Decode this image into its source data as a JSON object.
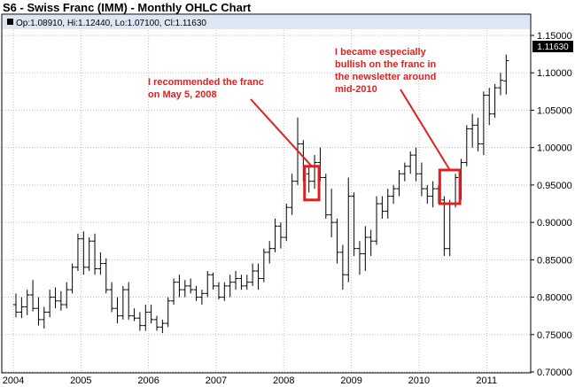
{
  "title": "S6 - Swiss Franc (IMM) - Monthly OHLC Chart",
  "ohlc_label": "Op:1.08910, Hi:1.12440, Lo:1.07100, Cl:1.11630",
  "last_price_label": "1.11630",
  "colors": {
    "header_band": "#dde6f5",
    "grid": "#bdbdbd",
    "bars": "#000000",
    "annotation": "#e02020",
    "price_tag_bg": "#000000",
    "price_tag_text": "#ffffff"
  },
  "chart_data": {
    "type": "ohlc",
    "title": "S6 - Swiss Franc (IMM) - Monthly OHLC Chart",
    "x_ticks": [
      "2004",
      "2005",
      "2006",
      "2007",
      "2008",
      "2009",
      "2010",
      "2011"
    ],
    "y_ticks": [
      "0.70000",
      "0.75000",
      "0.80000",
      "0.85000",
      "0.90000",
      "0.95000",
      "1.00000",
      "1.05000",
      "1.10000",
      "1.15000"
    ],
    "ylim": [
      0.7,
      1.15
    ],
    "xlim": [
      "2004-01",
      "2011-06"
    ],
    "grid": true,
    "bars": [
      {
        "d": "2004-01",
        "o": 0.79,
        "h": 0.805,
        "l": 0.773,
        "c": 0.78
      },
      {
        "d": "2004-02",
        "o": 0.78,
        "h": 0.8,
        "l": 0.772,
        "c": 0.787
      },
      {
        "d": "2004-03",
        "o": 0.787,
        "h": 0.81,
        "l": 0.776,
        "c": 0.803
      },
      {
        "d": "2004-04",
        "o": 0.803,
        "h": 0.823,
        "l": 0.781,
        "c": 0.785
      },
      {
        "d": "2004-05",
        "o": 0.785,
        "h": 0.8,
        "l": 0.762,
        "c": 0.77
      },
      {
        "d": "2004-06",
        "o": 0.77,
        "h": 0.787,
        "l": 0.758,
        "c": 0.78
      },
      {
        "d": "2004-07",
        "o": 0.78,
        "h": 0.81,
        "l": 0.773,
        "c": 0.8
      },
      {
        "d": "2004-08",
        "o": 0.8,
        "h": 0.813,
        "l": 0.785,
        "c": 0.795
      },
      {
        "d": "2004-09",
        "o": 0.795,
        "h": 0.808,
        "l": 0.782,
        "c": 0.79
      },
      {
        "d": "2004-10",
        "o": 0.79,
        "h": 0.82,
        "l": 0.785,
        "c": 0.81
      },
      {
        "d": "2004-11",
        "o": 0.81,
        "h": 0.845,
        "l": 0.805,
        "c": 0.84
      },
      {
        "d": "2004-12",
        "o": 0.84,
        "h": 0.885,
        "l": 0.835,
        "c": 0.878
      },
      {
        "d": "2005-01",
        "o": 0.878,
        "h": 0.888,
        "l": 0.83,
        "c": 0.84
      },
      {
        "d": "2005-02",
        "o": 0.84,
        "h": 0.88,
        "l": 0.835,
        "c": 0.875
      },
      {
        "d": "2005-03",
        "o": 0.875,
        "h": 0.885,
        "l": 0.83,
        "c": 0.838
      },
      {
        "d": "2005-04",
        "o": 0.838,
        "h": 0.86,
        "l": 0.83,
        "c": 0.845
      },
      {
        "d": "2005-05",
        "o": 0.845,
        "h": 0.852,
        "l": 0.805,
        "c": 0.81
      },
      {
        "d": "2005-06",
        "o": 0.81,
        "h": 0.82,
        "l": 0.78,
        "c": 0.785
      },
      {
        "d": "2005-07",
        "o": 0.785,
        "h": 0.8,
        "l": 0.765,
        "c": 0.775
      },
      {
        "d": "2005-08",
        "o": 0.775,
        "h": 0.815,
        "l": 0.77,
        "c": 0.81
      },
      {
        "d": "2005-09",
        "o": 0.81,
        "h": 0.82,
        "l": 0.77,
        "c": 0.775
      },
      {
        "d": "2005-10",
        "o": 0.775,
        "h": 0.785,
        "l": 0.768,
        "c": 0.772
      },
      {
        "d": "2005-11",
        "o": 0.772,
        "h": 0.78,
        "l": 0.755,
        "c": 0.762
      },
      {
        "d": "2005-12",
        "o": 0.762,
        "h": 0.79,
        "l": 0.755,
        "c": 0.78
      },
      {
        "d": "2006-01",
        "o": 0.78,
        "h": 0.79,
        "l": 0.765,
        "c": 0.77
      },
      {
        "d": "2006-02",
        "o": 0.77,
        "h": 0.775,
        "l": 0.755,
        "c": 0.76
      },
      {
        "d": "2006-03",
        "o": 0.76,
        "h": 0.77,
        "l": 0.752,
        "c": 0.765
      },
      {
        "d": "2006-04",
        "o": 0.765,
        "h": 0.8,
        "l": 0.76,
        "c": 0.795
      },
      {
        "d": "2006-05",
        "o": 0.795,
        "h": 0.825,
        "l": 0.79,
        "c": 0.82
      },
      {
        "d": "2006-06",
        "o": 0.82,
        "h": 0.83,
        "l": 0.8,
        "c": 0.81
      },
      {
        "d": "2006-07",
        "o": 0.81,
        "h": 0.823,
        "l": 0.8,
        "c": 0.815
      },
      {
        "d": "2006-08",
        "o": 0.815,
        "h": 0.825,
        "l": 0.805,
        "c": 0.81
      },
      {
        "d": "2006-09",
        "o": 0.81,
        "h": 0.815,
        "l": 0.795,
        "c": 0.8
      },
      {
        "d": "2006-10",
        "o": 0.8,
        "h": 0.81,
        "l": 0.79,
        "c": 0.805
      },
      {
        "d": "2006-11",
        "o": 0.805,
        "h": 0.835,
        "l": 0.8,
        "c": 0.83
      },
      {
        "d": "2006-12",
        "o": 0.83,
        "h": 0.833,
        "l": 0.81,
        "c": 0.815
      },
      {
        "d": "2007-01",
        "o": 0.815,
        "h": 0.82,
        "l": 0.797,
        "c": 0.8
      },
      {
        "d": "2007-02",
        "o": 0.8,
        "h": 0.82,
        "l": 0.795,
        "c": 0.815
      },
      {
        "d": "2007-03",
        "o": 0.815,
        "h": 0.83,
        "l": 0.8,
        "c": 0.82
      },
      {
        "d": "2007-04",
        "o": 0.82,
        "h": 0.835,
        "l": 0.81,
        "c": 0.825
      },
      {
        "d": "2007-05",
        "o": 0.825,
        "h": 0.83,
        "l": 0.81,
        "c": 0.815
      },
      {
        "d": "2007-06",
        "o": 0.815,
        "h": 0.83,
        "l": 0.81,
        "c": 0.82
      },
      {
        "d": "2007-07",
        "o": 0.82,
        "h": 0.845,
        "l": 0.815,
        "c": 0.835
      },
      {
        "d": "2007-08",
        "o": 0.835,
        "h": 0.845,
        "l": 0.81,
        "c": 0.825
      },
      {
        "d": "2007-09",
        "o": 0.825,
        "h": 0.865,
        "l": 0.82,
        "c": 0.86
      },
      {
        "d": "2007-10",
        "o": 0.86,
        "h": 0.875,
        "l": 0.845,
        "c": 0.865
      },
      {
        "d": "2007-11",
        "o": 0.865,
        "h": 0.905,
        "l": 0.86,
        "c": 0.895
      },
      {
        "d": "2007-12",
        "o": 0.895,
        "h": 0.9,
        "l": 0.865,
        "c": 0.88
      },
      {
        "d": "2008-01",
        "o": 0.88,
        "h": 0.925,
        "l": 0.875,
        "c": 0.92
      },
      {
        "d": "2008-02",
        "o": 0.92,
        "h": 0.965,
        "l": 0.91,
        "c": 0.955
      },
      {
        "d": "2008-03",
        "o": 0.955,
        "h": 1.04,
        "l": 0.95,
        "c": 1.005
      },
      {
        "d": "2008-04",
        "o": 1.005,
        "h": 1.01,
        "l": 0.955,
        "c": 0.965
      },
      {
        "d": "2008-05",
        "o": 0.965,
        "h": 0.975,
        "l": 0.94,
        "c": 0.955
      },
      {
        "d": "2008-06",
        "o": 0.955,
        "h": 0.99,
        "l": 0.945,
        "c": 0.98
      },
      {
        "d": "2008-07",
        "o": 0.98,
        "h": 1.0,
        "l": 0.955,
        "c": 0.96
      },
      {
        "d": "2008-08",
        "o": 0.96,
        "h": 0.965,
        "l": 0.905,
        "c": 0.91
      },
      {
        "d": "2008-09",
        "o": 0.91,
        "h": 0.945,
        "l": 0.88,
        "c": 0.9
      },
      {
        "d": "2008-10",
        "o": 0.9,
        "h": 0.905,
        "l": 0.845,
        "c": 0.86
      },
      {
        "d": "2008-11",
        "o": 0.86,
        "h": 0.87,
        "l": 0.81,
        "c": 0.83
      },
      {
        "d": "2008-12",
        "o": 0.83,
        "h": 0.96,
        "l": 0.82,
        "c": 0.935
      },
      {
        "d": "2009-01",
        "o": 0.935,
        "h": 0.94,
        "l": 0.855,
        "c": 0.865
      },
      {
        "d": "2009-02",
        "o": 0.865,
        "h": 0.875,
        "l": 0.83,
        "c": 0.858
      },
      {
        "d": "2009-03",
        "o": 0.858,
        "h": 0.895,
        "l": 0.835,
        "c": 0.88
      },
      {
        "d": "2009-04",
        "o": 0.88,
        "h": 0.89,
        "l": 0.855,
        "c": 0.875
      },
      {
        "d": "2009-05",
        "o": 0.875,
        "h": 0.935,
        "l": 0.87,
        "c": 0.925
      },
      {
        "d": "2009-06",
        "o": 0.925,
        "h": 0.935,
        "l": 0.905,
        "c": 0.915
      },
      {
        "d": "2009-07",
        "o": 0.915,
        "h": 0.945,
        "l": 0.905,
        "c": 0.935
      },
      {
        "d": "2009-08",
        "o": 0.935,
        "h": 0.95,
        "l": 0.925,
        "c": 0.945
      },
      {
        "d": "2009-09",
        "o": 0.945,
        "h": 0.97,
        "l": 0.935,
        "c": 0.965
      },
      {
        "d": "2009-10",
        "o": 0.965,
        "h": 0.98,
        "l": 0.955,
        "c": 0.975
      },
      {
        "d": "2009-11",
        "o": 0.975,
        "h": 0.995,
        "l": 0.965,
        "c": 0.99
      },
      {
        "d": "2009-12",
        "o": 0.99,
        "h": 1.0,
        "l": 0.955,
        "c": 0.965
      },
      {
        "d": "2010-01",
        "o": 0.965,
        "h": 0.98,
        "l": 0.935,
        "c": 0.945
      },
      {
        "d": "2010-02",
        "o": 0.945,
        "h": 0.95,
        "l": 0.925,
        "c": 0.935
      },
      {
        "d": "2010-03",
        "o": 0.935,
        "h": 0.955,
        "l": 0.92,
        "c": 0.945
      },
      {
        "d": "2010-04",
        "o": 0.945,
        "h": 0.95,
        "l": 0.925,
        "c": 0.93
      },
      {
        "d": "2010-05",
        "o": 0.93,
        "h": 0.935,
        "l": 0.855,
        "c": 0.865
      },
      {
        "d": "2010-06",
        "o": 0.865,
        "h": 0.93,
        "l": 0.855,
        "c": 0.925
      },
      {
        "d": "2010-07",
        "o": 0.925,
        "h": 0.965,
        "l": 0.92,
        "c": 0.96
      },
      {
        "d": "2010-08",
        "o": 0.96,
        "h": 0.985,
        "l": 0.93,
        "c": 0.98
      },
      {
        "d": "2010-09",
        "o": 0.98,
        "h": 1.03,
        "l": 0.975,
        "c": 1.025
      },
      {
        "d": "2010-10",
        "o": 1.025,
        "h": 1.045,
        "l": 1.0,
        "c": 1.03
      },
      {
        "d": "2010-11",
        "o": 1.03,
        "h": 1.04,
        "l": 0.995,
        "c": 1.005
      },
      {
        "d": "2010-12",
        "o": 1.005,
        "h": 1.075,
        "l": 0.99,
        "c": 1.07
      },
      {
        "d": "2011-01",
        "o": 1.07,
        "h": 1.08,
        "l": 1.03,
        "c": 1.045
      },
      {
        "d": "2011-02",
        "o": 1.045,
        "h": 1.085,
        "l": 1.04,
        "c": 1.08
      },
      {
        "d": "2011-03",
        "o": 1.08,
        "h": 1.1,
        "l": 1.07,
        "c": 1.09
      },
      {
        "d": "2011-04",
        "o": 1.0891,
        "h": 1.1244,
        "l": 1.071,
        "c": 1.1163
      }
    ],
    "annotations": [
      {
        "text": "I recommended the franc on May 5, 2008",
        "box": {
          "from": "2008-05",
          "to": "2008-06",
          "y_low": 0.93,
          "y_high": 0.975
        }
      },
      {
        "text": "I became especially bullish on the franc in the newsletter around mid-2010",
        "box": {
          "from": "2010-05",
          "to": "2010-07",
          "y_low": 0.925,
          "y_high": 0.97
        }
      }
    ]
  }
}
